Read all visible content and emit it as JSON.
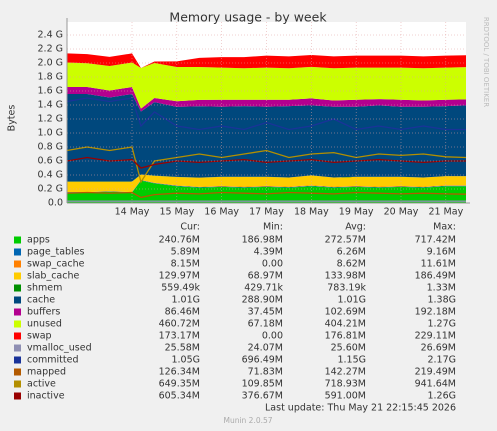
{
  "chart_data": {
    "type": "area",
    "title": "Memory usage - by week",
    "y_label": "Bytes",
    "watermark": "RRDTOOL / TOBI OETIKER",
    "grid": true,
    "x": [
      13.05,
      13.5,
      14,
      14.5,
      14.7,
      15,
      15.5,
      16,
      16.5,
      17,
      17.5,
      18,
      18.5,
      19,
      19.5,
      20,
      20.5,
      21,
      21.5,
      21.95
    ],
    "xlim": [
      13.05,
      21.95
    ],
    "xticks": [
      {
        "value": 14.5,
        "label": "14 May"
      },
      {
        "value": 15.5,
        "label": "15 May"
      },
      {
        "value": 16.5,
        "label": "16 May"
      },
      {
        "value": 17.5,
        "label": "17 May"
      },
      {
        "value": 18.5,
        "label": "18 May"
      },
      {
        "value": 19.5,
        "label": "19 May"
      },
      {
        "value": 20.5,
        "label": "20 May"
      },
      {
        "value": 21.5,
        "label": "21 May"
      }
    ],
    "ylim": [
      0,
      2.4
    ],
    "yticks": [
      {
        "value": 0,
        "label": "0.0"
      },
      {
        "value": 0.2,
        "label": "0.2 G"
      },
      {
        "value": 0.4,
        "label": "0.4 G"
      },
      {
        "value": 0.6,
        "label": "0.6 G"
      },
      {
        "value": 0.8,
        "label": "0.8 G"
      },
      {
        "value": 1.0,
        "label": "1.0 G"
      },
      {
        "value": 1.2,
        "label": "1.2 G"
      },
      {
        "value": 1.4,
        "label": "1.4 G"
      },
      {
        "value": 1.6,
        "label": "1.6 G"
      },
      {
        "value": 1.8,
        "label": "1.8 G"
      },
      {
        "value": 2.0,
        "label": "2.0 G"
      },
      {
        "value": 2.2,
        "label": "2.2 G"
      },
      {
        "value": 2.4,
        "label": "2.4 G"
      }
    ],
    "stat_headers": [
      "Cur:",
      "Min:",
      "Avg:",
      "Max:"
    ],
    "series": [
      {
        "name": "apps",
        "color": "#00cc00",
        "draw": "stack",
        "stats": [
          "240.76M",
          "186.98M",
          "272.57M",
          "717.42M"
        ],
        "values": [
          0.15,
          0.15,
          0.16,
          0.15,
          0.32,
          0.28,
          0.24,
          0.22,
          0.23,
          0.22,
          0.23,
          0.22,
          0.24,
          0.22,
          0.23,
          0.22,
          0.23,
          0.22,
          0.24,
          0.24
        ]
      },
      {
        "name": "page_tables",
        "color": "#0066b3",
        "draw": "stack",
        "stats": [
          "5.89M",
          "4.39M",
          "6.26M",
          "9.16M"
        ],
        "values": [
          0.006,
          0.006,
          0.006,
          0.006,
          0.006,
          0.006,
          0.006,
          0.006,
          0.006,
          0.006,
          0.006,
          0.006,
          0.006,
          0.006,
          0.006,
          0.006,
          0.006,
          0.006,
          0.006,
          0.006
        ]
      },
      {
        "name": "swap_cache",
        "color": "#ff8000",
        "draw": "stack",
        "stats": [
          "8.15M",
          "0.00",
          "8.62M",
          "11.61M"
        ],
        "values": [
          0,
          0,
          0,
          0,
          0.001,
          0.004,
          0.006,
          0.006,
          0.008,
          0.008,
          0.008,
          0.008,
          0.008,
          0.008,
          0.008,
          0.008,
          0.008,
          0.008,
          0.008,
          0.008
        ]
      },
      {
        "name": "slab_cache",
        "color": "#ffcc00",
        "draw": "stack",
        "stats": [
          "129.97M",
          "68.97M",
          "133.98M",
          "186.49M"
        ],
        "values": [
          0.15,
          0.15,
          0.14,
          0.15,
          0.08,
          0.1,
          0.12,
          0.13,
          0.13,
          0.14,
          0.13,
          0.13,
          0.14,
          0.13,
          0.13,
          0.14,
          0.13,
          0.13,
          0.13,
          0.13
        ]
      },
      {
        "name": "shmem",
        "color": "#008f00",
        "draw": "stack",
        "stats": [
          "559.49k",
          "429.71k",
          "783.19k",
          "1.33M"
        ],
        "values": [
          0.0007,
          0.0007,
          0.0007,
          0.0007,
          0.0007,
          0.0007,
          0.0007,
          0.0007,
          0.0007,
          0.0007,
          0.0007,
          0.0007,
          0.0007,
          0.0007,
          0.0007,
          0.0007,
          0.0007,
          0.0007,
          0.0007,
          0.0007
        ]
      },
      {
        "name": "cache",
        "color": "#00487d",
        "draw": "stack",
        "stats": [
          "1.01G",
          "288.90M",
          "1.01G",
          "1.38G"
        ],
        "values": [
          1.25,
          1.25,
          1.2,
          1.25,
          0.9,
          1.05,
          1.0,
          1.02,
          1.0,
          1.01,
          1.0,
          1.02,
          1.0,
          1.01,
          1.0,
          1.02,
          1.0,
          1.01,
          1.0,
          1.01
        ]
      },
      {
        "name": "buffers",
        "color": "#b3008f",
        "draw": "stack",
        "stats": [
          "86.46M",
          "37.45M",
          "102.69M",
          "192.18M"
        ],
        "values": [
          0.1,
          0.1,
          0.1,
          0.1,
          0.04,
          0.06,
          0.08,
          0.09,
          0.1,
          0.09,
          0.1,
          0.09,
          0.1,
          0.09,
          0.1,
          0.09,
          0.1,
          0.09,
          0.09,
          0.086
        ]
      },
      {
        "name": "unused",
        "color": "#ccff00",
        "draw": "stack",
        "stats": [
          "460.72M",
          "67.18M",
          "404.21M",
          "1.27G"
        ],
        "values": [
          0.35,
          0.34,
          0.35,
          0.35,
          0.58,
          0.5,
          0.49,
          0.47,
          0.46,
          0.45,
          0.46,
          0.45,
          0.45,
          0.46,
          0.46,
          0.45,
          0.46,
          0.46,
          0.46,
          0.46
        ]
      },
      {
        "name": "swap",
        "color": "#ff0000",
        "draw": "stack",
        "stats": [
          "173.17M",
          "0.00",
          "176.81M",
          "229.11M"
        ],
        "values": [
          0.13,
          0.13,
          0.13,
          0.13,
          0,
          0.02,
          0.08,
          0.13,
          0.15,
          0.16,
          0.17,
          0.17,
          0.17,
          0.17,
          0.17,
          0.17,
          0.17,
          0.17,
          0.17,
          0.17
        ]
      },
      {
        "name": "vmalloc_used",
        "color": "#8f8fb3",
        "draw": "line",
        "stats": [
          "25.58M",
          "24.07M",
          "25.60M",
          "26.69M"
        ],
        "values": [
          0.026,
          0.026,
          0.026,
          0.026,
          0.026,
          0.026,
          0.026,
          0.026,
          0.026,
          0.026,
          0.026,
          0.026,
          0.026,
          0.026,
          0.026,
          0.026,
          0.026,
          0.026,
          0.026,
          0.026
        ]
      },
      {
        "name": "committed",
        "color": "#1a3399",
        "draw": "line",
        "stats": [
          "1.05G",
          "696.49M",
          "1.15G",
          "2.17G"
        ],
        "values": [
          1.45,
          1.5,
          1.45,
          1.5,
          1.1,
          1.3,
          1.1,
          1.05,
          1.1,
          1.05,
          1.15,
          1.05,
          1.1,
          1.2,
          1.05,
          1.1,
          1.05,
          1.1,
          1.05,
          1.05
        ]
      },
      {
        "name": "mapped",
        "color": "#b35a00",
        "draw": "line",
        "stats": [
          "126.34M",
          "71.83M",
          "142.27M",
          "219.49M"
        ],
        "values": [
          0.14,
          0.15,
          0.14,
          0.15,
          0.08,
          0.12,
          0.14,
          0.13,
          0.15,
          0.14,
          0.13,
          0.15,
          0.14,
          0.13,
          0.15,
          0.14,
          0.13,
          0.14,
          0.13,
          0.126
        ]
      },
      {
        "name": "active",
        "color": "#b38f00",
        "draw": "line",
        "stats": [
          "649.35M",
          "109.85M",
          "718.93M",
          "941.64M"
        ],
        "values": [
          0.75,
          0.8,
          0.75,
          0.8,
          0.3,
          0.6,
          0.65,
          0.7,
          0.65,
          0.7,
          0.75,
          0.65,
          0.7,
          0.72,
          0.65,
          0.7,
          0.68,
          0.7,
          0.66,
          0.65
        ]
      },
      {
        "name": "inactive",
        "color": "#990000",
        "draw": "line",
        "stats": [
          "605.34M",
          "376.67M",
          "591.00M",
          "1.26G"
        ],
        "values": [
          0.6,
          0.65,
          0.6,
          0.62,
          0.5,
          0.55,
          0.6,
          0.58,
          0.6,
          0.62,
          0.58,
          0.6,
          0.62,
          0.58,
          0.6,
          0.62,
          0.6,
          0.58,
          0.6,
          0.6
        ]
      }
    ],
    "last_update": "Last update: Thu May 21 22:15:45 2026",
    "footer": "Munin 2.0.57"
  }
}
